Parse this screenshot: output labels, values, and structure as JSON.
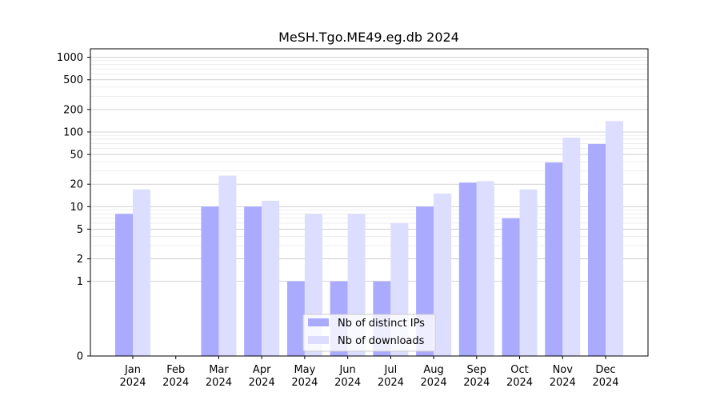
{
  "chart_data": {
    "type": "bar",
    "title": "MeSH.Tgo.ME49.eg.db 2024",
    "xlabel": "",
    "ylabel": "",
    "yscale": "symlog",
    "ylim": [
      0,
      1300
    ],
    "yticks": [
      0,
      1,
      2,
      5,
      10,
      20,
      50,
      100,
      200,
      500,
      1000
    ],
    "ytick_labels": [
      "0",
      "1",
      "2",
      "5",
      "10",
      "20",
      "50",
      "100",
      "200",
      "500",
      "1000"
    ],
    "categories": [
      "Jan",
      "Feb",
      "Mar",
      "Apr",
      "May",
      "Jun",
      "Jul",
      "Aug",
      "Sep",
      "Oct",
      "Nov",
      "Dec"
    ],
    "category_year": "2024",
    "series": [
      {
        "name": "Nb of distinct IPs",
        "color": "#aaaaff",
        "values": [
          8,
          0,
          10,
          10,
          1,
          1,
          1,
          10,
          21,
          7,
          39,
          69
        ]
      },
      {
        "name": "Nb of downloads",
        "color": "#ddddff",
        "values": [
          17,
          0,
          26,
          12,
          8,
          8,
          6,
          15,
          22,
          17,
          84,
          140
        ]
      }
    ],
    "grid": true,
    "legend": "lower-center"
  }
}
